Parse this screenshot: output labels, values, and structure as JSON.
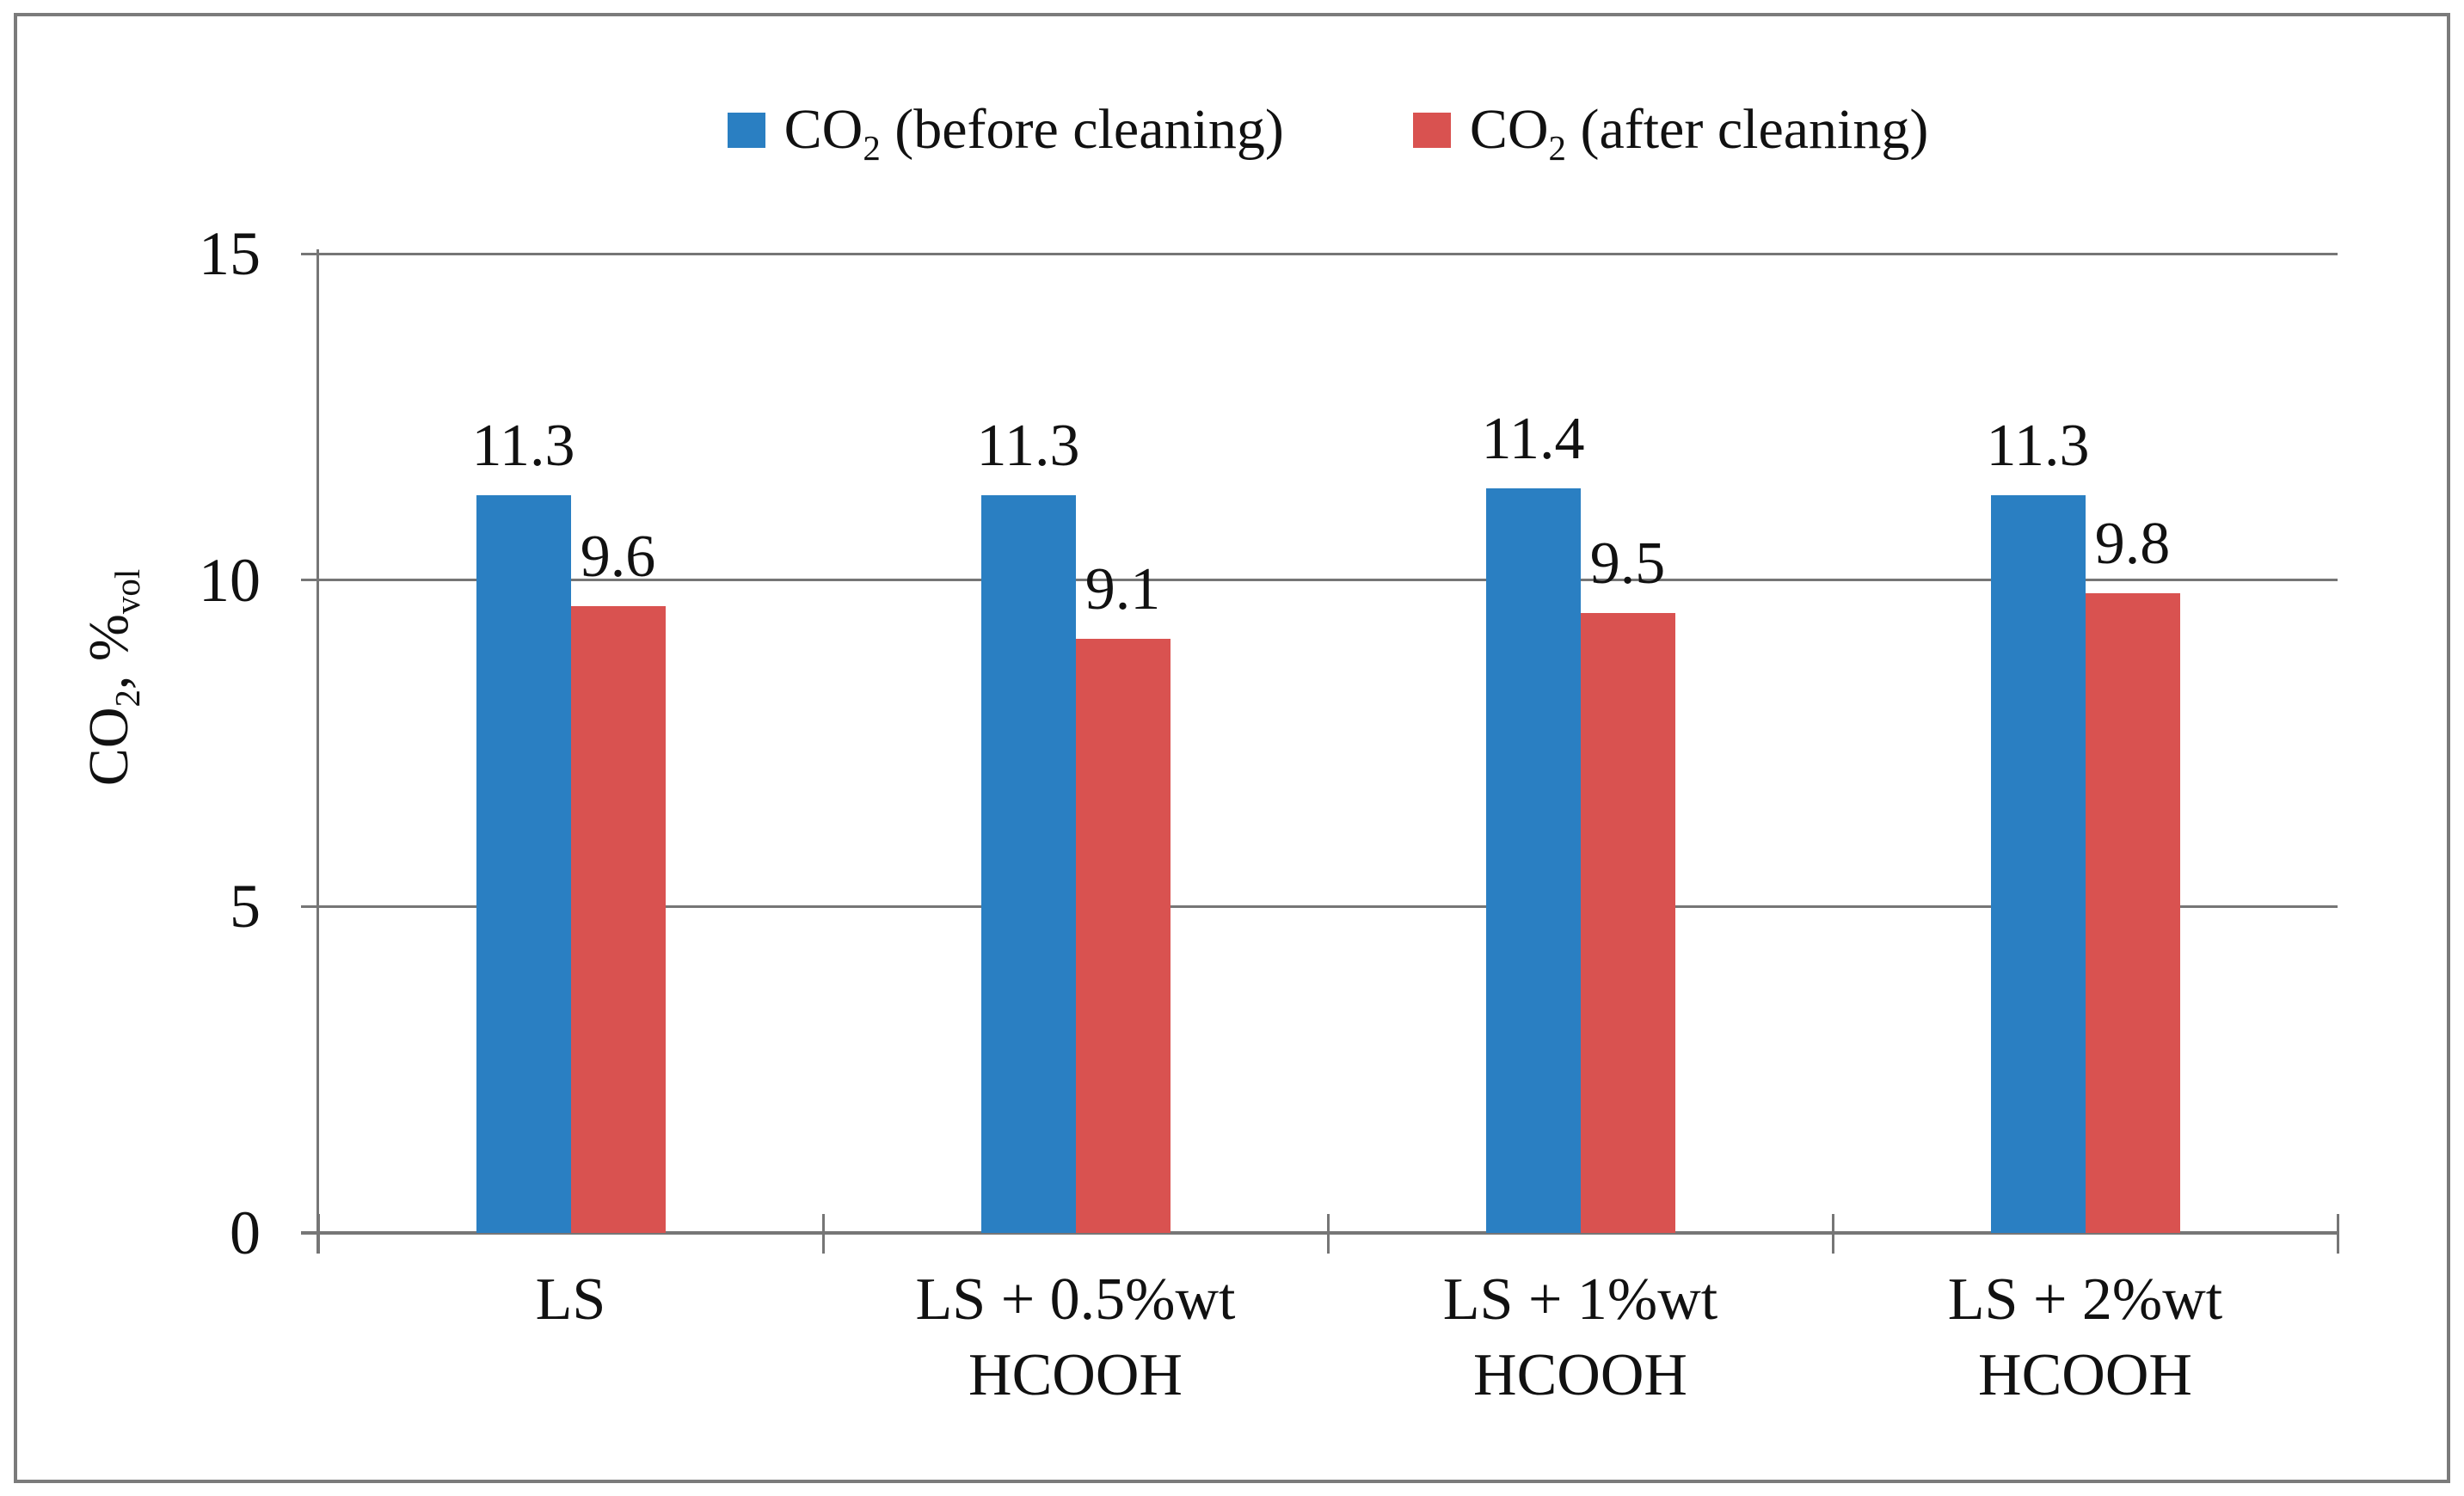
{
  "figure": {
    "background": "#ffffff",
    "border_color": "#7b7b7b",
    "line_color": "#767676",
    "text_color": "#111111"
  },
  "legend": {
    "items": [
      {
        "id": "before",
        "text_main": "CO",
        "text_sub": "2",
        "text_rest": " (before cleaning)",
        "color": "#2a7fc2"
      },
      {
        "id": "after",
        "text_main": "CO",
        "text_sub": "2",
        "text_rest": " (after cleaning)",
        "color": "#d95250"
      }
    ]
  },
  "y_axis": {
    "title_main": "CO",
    "title_sub": "2",
    "title_mid": ", %",
    "title_sub2": "vol",
    "tick_labels": [
      "0",
      "5",
      "10",
      "15"
    ]
  },
  "chart_data": {
    "type": "bar",
    "title": "",
    "categories": [
      "LS",
      "LS + 0.5%wt HCOOH",
      "LS + 1%wt HCOOH",
      "LS + 2%wt HCOOH"
    ],
    "categories_lines": [
      [
        "LS"
      ],
      [
        "LS + 0.5%wt",
        "HCOOH"
      ],
      [
        "LS + 1%wt",
        "HCOOH"
      ],
      [
        "LS + 2%wt",
        "HCOOH"
      ]
    ],
    "series": [
      {
        "name": "CO2 (before cleaning)",
        "color": "#2a7fc2",
        "values": [
          11.3,
          11.3,
          11.4,
          11.3
        ]
      },
      {
        "name": "CO2 (after cleaning)",
        "color": "#d95250",
        "values": [
          9.6,
          9.1,
          9.5,
          9.8
        ]
      }
    ],
    "data_labels": [
      "11.3",
      "9.6",
      "11.3",
      "9.1",
      "11.4",
      "9.5",
      "11.3",
      "9.8"
    ],
    "xlabel": "",
    "ylabel": "CO2, %vol",
    "ylim": [
      0,
      15
    ],
    "yticks": [
      0,
      5,
      10,
      15
    ],
    "grid": "horizontal-major",
    "legend_position": "top",
    "data_label_position": "outside-end"
  }
}
